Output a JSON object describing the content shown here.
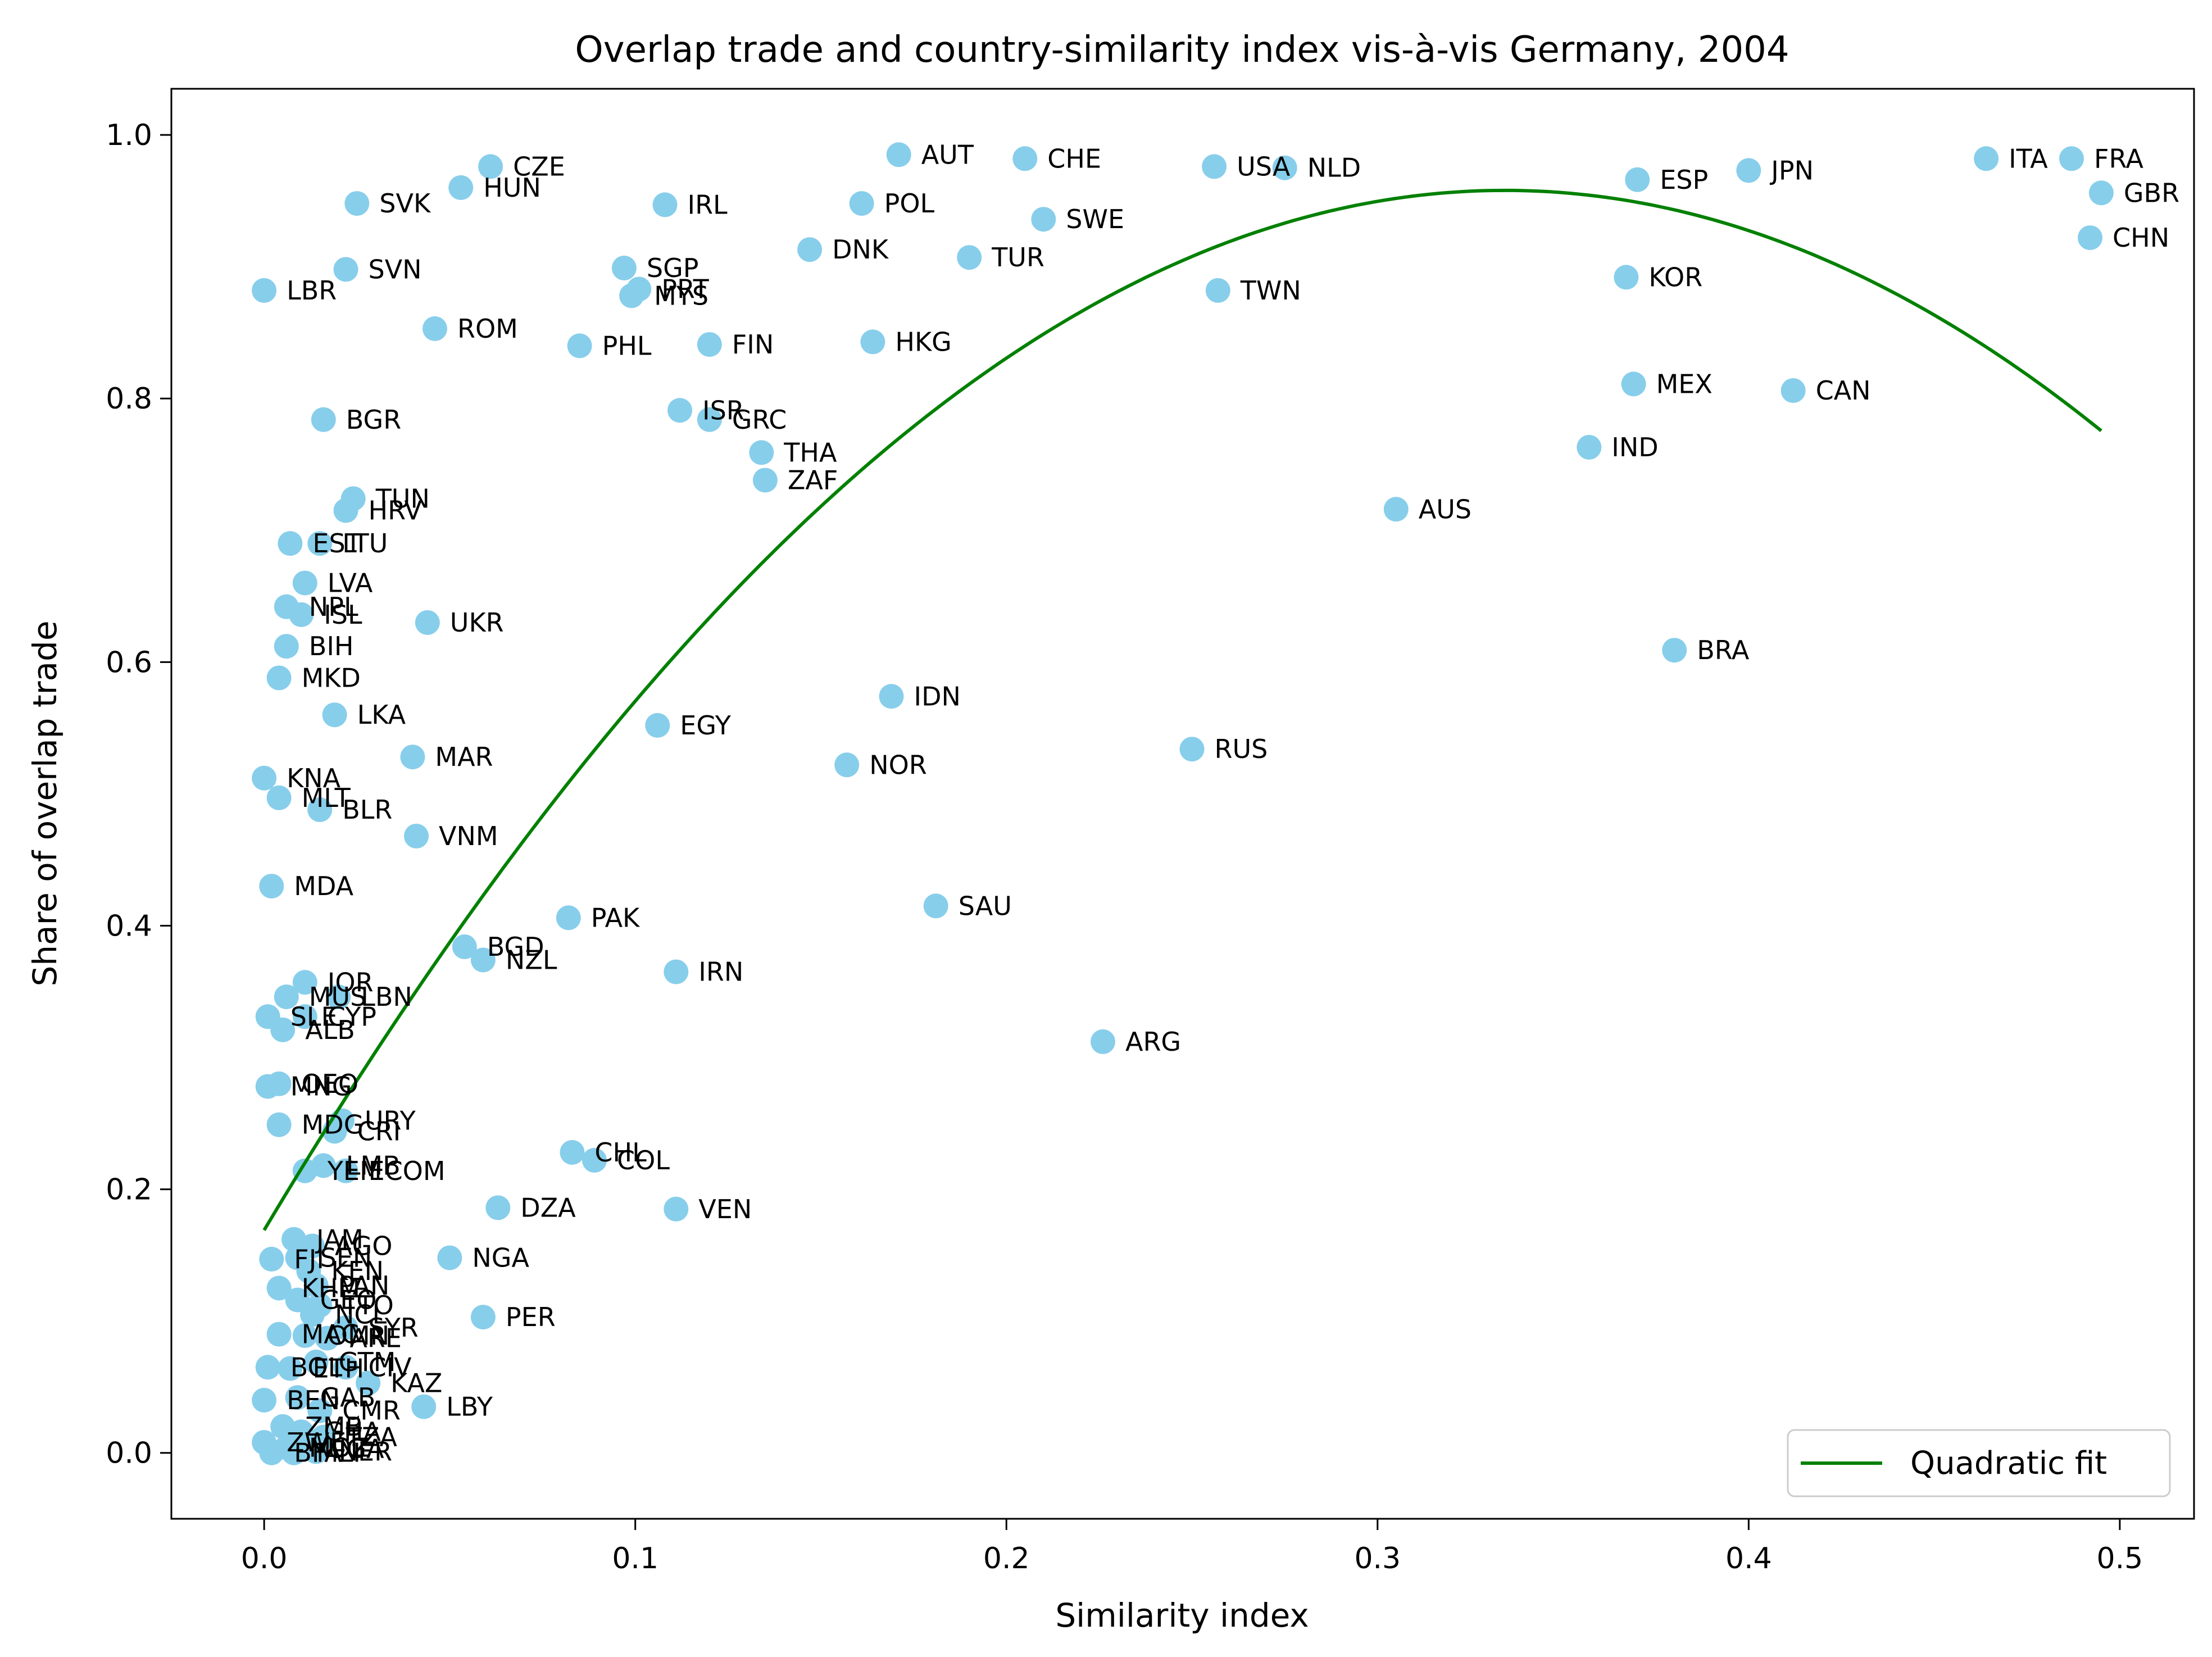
{
  "chart_data": {
    "type": "scatter",
    "title": "Overlap trade and country-similarity index vis-à-vis Germany, 2004",
    "xlabel": "Similarity index",
    "ylabel": "Share of overlap trade",
    "xlim": [
      -0.025,
      0.52
    ],
    "ylim": [
      -0.05,
      1.035
    ],
    "xticks": [
      0.0,
      0.1,
      0.2,
      0.3,
      0.4,
      0.5
    ],
    "yticks": [
      0.0,
      0.2,
      0.4,
      0.6,
      0.8,
      1.0
    ],
    "xtick_labels": [
      "0.0",
      "0.1",
      "0.2",
      "0.3",
      "0.4",
      "0.5"
    ],
    "ytick_labels": [
      "0.0",
      "0.2",
      "0.4",
      "0.6",
      "0.8",
      "1.0"
    ],
    "grid": false,
    "legend": {
      "position": "lower-right",
      "entries": [
        "Quadratic fit"
      ]
    },
    "colors": {
      "points": "#87CEEB",
      "fit": "#008000"
    },
    "fit": {
      "name": "Quadratic fit",
      "coefficients": [
        0.169,
        4.72,
        -7.06
      ],
      "x_range": [
        0.0,
        0.495
      ]
    },
    "points": [
      {
        "label": "CZE",
        "x": 0.061,
        "y": 0.976
      },
      {
        "label": "HUN",
        "x": 0.053,
        "y": 0.96
      },
      {
        "label": "SVK",
        "x": 0.025,
        "y": 0.948
      },
      {
        "label": "SVN",
        "x": 0.022,
        "y": 0.898
      },
      {
        "label": "LBR",
        "x": 0.0,
        "y": 0.882
      },
      {
        "label": "ROM",
        "x": 0.046,
        "y": 0.853
      },
      {
        "label": "BGR",
        "x": 0.016,
        "y": 0.784
      },
      {
        "label": "TUN",
        "x": 0.024,
        "y": 0.724
      },
      {
        "label": "HRV",
        "x": 0.022,
        "y": 0.715
      },
      {
        "label": "EST",
        "x": 0.007,
        "y": 0.69
      },
      {
        "label": "LTU",
        "x": 0.015,
        "y": 0.69
      },
      {
        "label": "LVA",
        "x": 0.011,
        "y": 0.66
      },
      {
        "label": "NPL",
        "x": 0.006,
        "y": 0.642
      },
      {
        "label": "ISL",
        "x": 0.01,
        "y": 0.636
      },
      {
        "label": "UKR",
        "x": 0.044,
        "y": 0.63
      },
      {
        "label": "BIH",
        "x": 0.006,
        "y": 0.612
      },
      {
        "label": "MKD",
        "x": 0.004,
        "y": 0.588
      },
      {
        "label": "LKA",
        "x": 0.019,
        "y": 0.56
      },
      {
        "label": "MAR",
        "x": 0.04,
        "y": 0.528
      },
      {
        "label": "KNA",
        "x": 0.0,
        "y": 0.512
      },
      {
        "label": "MLT",
        "x": 0.004,
        "y": 0.497
      },
      {
        "label": "BLR",
        "x": 0.015,
        "y": 0.488
      },
      {
        "label": "VNM",
        "x": 0.041,
        "y": 0.468
      },
      {
        "label": "MDA",
        "x": 0.002,
        "y": 0.43
      },
      {
        "label": "IRL",
        "x": 0.108,
        "y": 0.947
      },
      {
        "label": "SGP",
        "x": 0.097,
        "y": 0.899
      },
      {
        "label": "PRT",
        "x": 0.101,
        "y": 0.883
      },
      {
        "label": "MYS",
        "x": 0.099,
        "y": 0.878
      },
      {
        "label": "PHL",
        "x": 0.085,
        "y": 0.84
      },
      {
        "label": "FIN",
        "x": 0.12,
        "y": 0.841
      },
      {
        "label": "ISR",
        "x": 0.112,
        "y": 0.791
      },
      {
        "label": "GRC",
        "x": 0.12,
        "y": 0.784
      },
      {
        "label": "AUT",
        "x": 0.171,
        "y": 0.985
      },
      {
        "label": "POL",
        "x": 0.161,
        "y": 0.948
      },
      {
        "label": "DNK",
        "x": 0.147,
        "y": 0.913
      },
      {
        "label": "HKG",
        "x": 0.164,
        "y": 0.843
      },
      {
        "label": "THA",
        "x": 0.134,
        "y": 0.759
      },
      {
        "label": "ZAF",
        "x": 0.135,
        "y": 0.738
      },
      {
        "label": "CHE",
        "x": 0.205,
        "y": 0.982
      },
      {
        "label": "SWE",
        "x": 0.21,
        "y": 0.936
      },
      {
        "label": "TUR",
        "x": 0.19,
        "y": 0.907
      },
      {
        "label": "USA",
        "x": 0.256,
        "y": 0.976
      },
      {
        "label": "NLD",
        "x": 0.275,
        "y": 0.975
      },
      {
        "label": "TWN",
        "x": 0.257,
        "y": 0.882
      },
      {
        "label": "ESP",
        "x": 0.37,
        "y": 0.966
      },
      {
        "label": "JPN",
        "x": 0.4,
        "y": 0.973
      },
      {
        "label": "ITA",
        "x": 0.464,
        "y": 0.982
      },
      {
        "label": "FRA",
        "x": 0.487,
        "y": 0.982
      },
      {
        "label": "GBR",
        "x": 0.495,
        "y": 0.956
      },
      {
        "label": "CHN",
        "x": 0.492,
        "y": 0.922
      },
      {
        "label": "KOR",
        "x": 0.367,
        "y": 0.892
      },
      {
        "label": "MEX",
        "x": 0.369,
        "y": 0.811
      },
      {
        "label": "CAN",
        "x": 0.412,
        "y": 0.806
      },
      {
        "label": "IND",
        "x": 0.357,
        "y": 0.763
      },
      {
        "label": "AUS",
        "x": 0.305,
        "y": 0.716
      },
      {
        "label": "BRA",
        "x": 0.38,
        "y": 0.609
      },
      {
        "label": "IDN",
        "x": 0.169,
        "y": 0.574
      },
      {
        "label": "EGY",
        "x": 0.106,
        "y": 0.552
      },
      {
        "label": "NOR",
        "x": 0.157,
        "y": 0.522
      },
      {
        "label": "RUS",
        "x": 0.25,
        "y": 0.534
      },
      {
        "label": "SAU",
        "x": 0.181,
        "y": 0.415
      },
      {
        "label": "PAK",
        "x": 0.082,
        "y": 0.406
      },
      {
        "label": "BGD",
        "x": 0.054,
        "y": 0.384
      },
      {
        "label": "NZL",
        "x": 0.059,
        "y": 0.374
      },
      {
        "label": "IRN",
        "x": 0.111,
        "y": 0.365
      },
      {
        "label": "ARG",
        "x": 0.226,
        "y": 0.312
      },
      {
        "label": "JOR",
        "x": 0.011,
        "y": 0.357
      },
      {
        "label": "MUS",
        "x": 0.006,
        "y": 0.346
      },
      {
        "label": "LBN",
        "x": 0.02,
        "y": 0.346
      },
      {
        "label": "SLE",
        "x": 0.001,
        "y": 0.331
      },
      {
        "label": "CYP",
        "x": 0.011,
        "y": 0.331
      },
      {
        "label": "ALB",
        "x": 0.005,
        "y": 0.321
      },
      {
        "label": "OEO",
        "x": 0.004,
        "y": 0.28
      },
      {
        "label": "MNG",
        "x": 0.001,
        "y": 0.278
      },
      {
        "label": "URY",
        "x": 0.021,
        "y": 0.252
      },
      {
        "label": "MDG",
        "x": 0.004,
        "y": 0.249
      },
      {
        "label": "CRI",
        "x": 0.019,
        "y": 0.244
      },
      {
        "label": "CHL",
        "x": 0.083,
        "y": 0.228
      },
      {
        "label": "COL",
        "x": 0.089,
        "y": 0.222
      },
      {
        "label": "LMB",
        "x": 0.016,
        "y": 0.218
      },
      {
        "label": "YEM",
        "x": 0.011,
        "y": 0.214
      },
      {
        "label": "ECOM",
        "x": 0.022,
        "y": 0.214
      },
      {
        "label": "DZA",
        "x": 0.063,
        "y": 0.186
      },
      {
        "label": "VEN",
        "x": 0.111,
        "y": 0.185
      },
      {
        "label": "NGA",
        "x": 0.05,
        "y": 0.148
      },
      {
        "label": "PER",
        "x": 0.059,
        "y": 0.103
      },
      {
        "label": "LBY",
        "x": 0.043,
        "y": 0.035
      },
      {
        "label": "KAZ",
        "x": 0.028,
        "y": 0.053
      },
      {
        "label": "JAM",
        "x": 0.008,
        "y": 0.162
      },
      {
        "label": "AGO",
        "x": 0.013,
        "y": 0.157
      },
      {
        "label": "FJI",
        "x": 0.002,
        "y": 0.147
      },
      {
        "label": "SEN",
        "x": 0.009,
        "y": 0.148
      },
      {
        "label": "KEN",
        "x": 0.012,
        "y": 0.138
      },
      {
        "label": "KHM",
        "x": 0.004,
        "y": 0.125
      },
      {
        "label": "PAN",
        "x": 0.014,
        "y": 0.127
      },
      {
        "label": "GEO",
        "x": 0.009,
        "y": 0.116
      },
      {
        "label": "TTO",
        "x": 0.015,
        "y": 0.112
      },
      {
        "label": "NCL",
        "x": 0.013,
        "y": 0.105
      },
      {
        "label": "SYR",
        "x": 0.022,
        "y": 0.095
      },
      {
        "label": "MAC",
        "x": 0.004,
        "y": 0.09
      },
      {
        "label": "OMN",
        "x": 0.011,
        "y": 0.089
      },
      {
        "label": "ARE",
        "x": 0.017,
        "y": 0.087
      },
      {
        "label": "BOL",
        "x": 0.001,
        "y": 0.065
      },
      {
        "label": "ETH",
        "x": 0.007,
        "y": 0.064
      },
      {
        "label": "GTM",
        "x": 0.014,
        "y": 0.069
      },
      {
        "label": "CIV",
        "x": 0.022,
        "y": 0.065
      },
      {
        "label": "GAB",
        "x": 0.009,
        "y": 0.042
      },
      {
        "label": "BEN",
        "x": 0.0,
        "y": 0.04
      },
      {
        "label": "CMR",
        "x": 0.015,
        "y": 0.032
      },
      {
        "label": "ZMB",
        "x": 0.005,
        "y": 0.02
      },
      {
        "label": "GHA",
        "x": 0.01,
        "y": 0.016
      },
      {
        "label": "TZA",
        "x": 0.016,
        "y": 0.012
      },
      {
        "label": "ZWE",
        "x": 0.0,
        "y": 0.008
      },
      {
        "label": "MOZ",
        "x": 0.006,
        "y": 0.004
      },
      {
        "label": "UGA",
        "x": 0.011,
        "y": 0.003
      },
      {
        "label": "BFA",
        "x": 0.002,
        "y": 0.0
      },
      {
        "label": "MLI",
        "x": 0.008,
        "y": 0.0
      },
      {
        "label": "NER",
        "x": 0.014,
        "y": 0.001
      }
    ]
  }
}
